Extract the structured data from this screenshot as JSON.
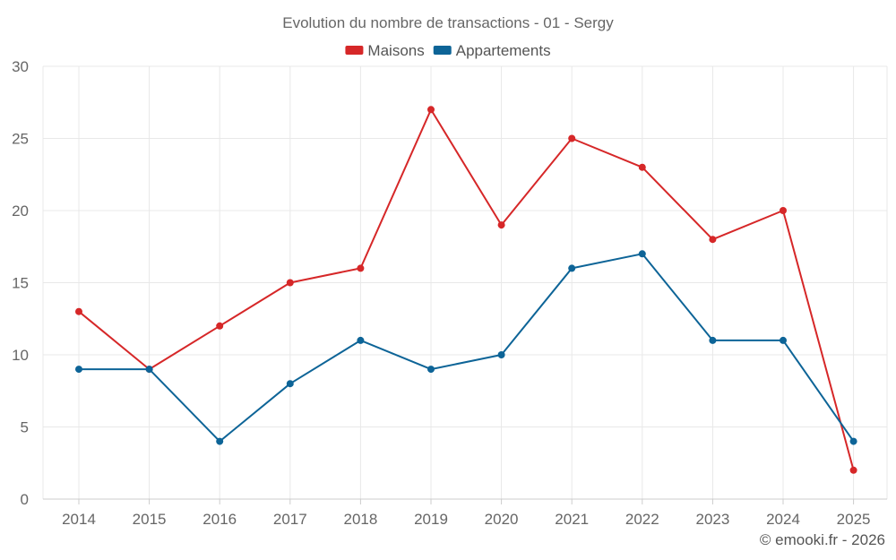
{
  "chart_data": {
    "type": "line",
    "title": "Evolution du nombre de transactions - 01 - Sergy",
    "categories": [
      "2014",
      "2015",
      "2016",
      "2017",
      "2018",
      "2019",
      "2020",
      "2021",
      "2022",
      "2023",
      "2024",
      "2025"
    ],
    "ylim": [
      0,
      30
    ],
    "yticks": [
      0,
      5,
      10,
      15,
      20,
      25,
      30
    ],
    "grid": true,
    "legend": "top-center",
    "series": [
      {
        "name": "Maisons",
        "color": "#d62728",
        "values": [
          13,
          9,
          12,
          15,
          16,
          27,
          19,
          25,
          23,
          18,
          20,
          2
        ]
      },
      {
        "name": "Appartements",
        "color": "#0d6497",
        "values": [
          9,
          9,
          4,
          8,
          11,
          9,
          10,
          16,
          17,
          11,
          11,
          4
        ]
      }
    ]
  },
  "credit": "© emooki.fr - 2026"
}
